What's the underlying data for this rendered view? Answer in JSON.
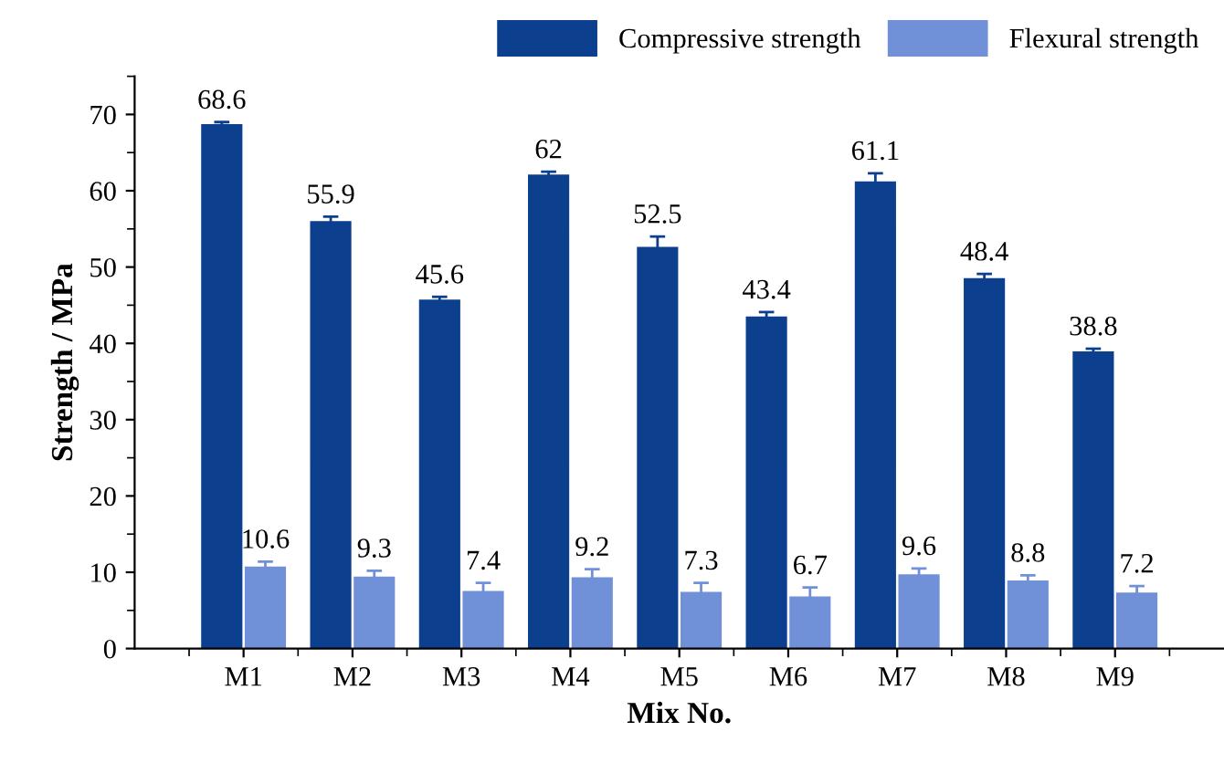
{
  "chart_data": {
    "type": "bar",
    "xlabel": "Mix No.",
    "ylabel": "Strength / MPa",
    "categories": [
      "M1",
      "M2",
      "M3",
      "M4",
      "M5",
      "M6",
      "M7",
      "M8",
      "M9"
    ],
    "series": [
      {
        "name": "Compressive strength",
        "color": "#0d3f8f",
        "values": [
          68.6,
          55.9,
          45.6,
          62,
          52.5,
          43.4,
          61.1,
          48.4,
          38.8
        ],
        "errors": [
          0.4,
          0.7,
          0.5,
          0.5,
          1.5,
          0.7,
          1.2,
          0.7,
          0.5
        ]
      },
      {
        "name": "Flexural strength",
        "color": "#7090d8",
        "values": [
          10.6,
          9.3,
          7.4,
          9.2,
          7.3,
          6.7,
          9.6,
          8.8,
          7.2
        ],
        "errors": [
          0.8,
          0.9,
          1.2,
          1.2,
          1.3,
          1.3,
          0.9,
          0.8,
          1.0
        ]
      }
    ],
    "ylim": [
      0,
      75
    ],
    "yticks": [
      0,
      10,
      20,
      30,
      40,
      50,
      60,
      70
    ],
    "data_labels": true,
    "legend": "top right",
    "grid": false
  }
}
